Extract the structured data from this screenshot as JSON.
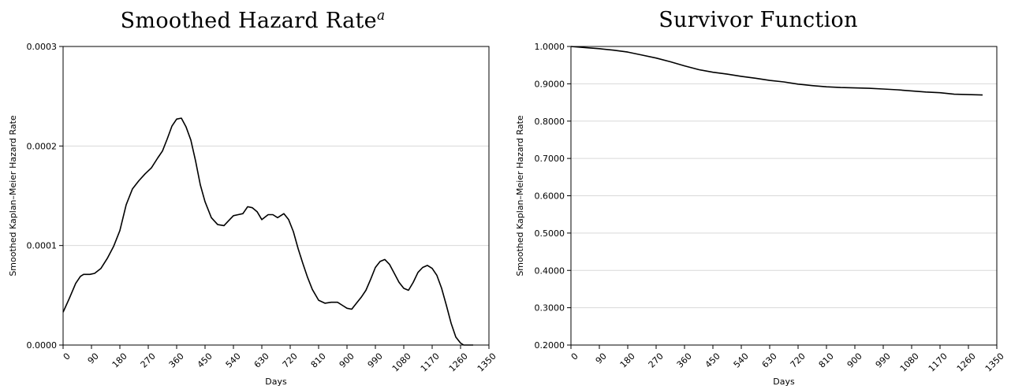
{
  "chart_data": [
    {
      "type": "line",
      "title": "Smoothed Hazard Rate",
      "title_superscript": "a",
      "xlabel": "Days",
      "ylabel": "Smoothed Kaplan–Meier Hazard Rate",
      "xlim": [
        0,
        1350
      ],
      "ylim": [
        0,
        0.0003
      ],
      "xticks": [
        0,
        90,
        180,
        270,
        360,
        450,
        540,
        630,
        720,
        810,
        900,
        990,
        1080,
        1170,
        1260,
        1350
      ],
      "yticks": [
        0,
        0.0001,
        0.0002,
        0.0003
      ],
      "ytick_labels": [
        "0.0000",
        "0.0001",
        "0.0002",
        "0.0003"
      ],
      "grid": "horizontal",
      "series": [
        {
          "x": [
            0,
            20,
            40,
            55,
            65,
            75,
            85,
            100,
            120,
            140,
            160,
            180,
            200,
            220,
            240,
            260,
            280,
            300,
            315,
            330,
            345,
            360,
            375,
            390,
            405,
            420,
            435,
            450,
            470,
            490,
            510,
            525,
            540,
            555,
            570,
            585,
            600,
            615,
            630,
            650,
            665,
            680,
            700,
            715,
            730,
            745,
            760,
            775,
            790,
            810,
            830,
            850,
            870,
            885,
            900,
            915,
            930,
            945,
            960,
            975,
            990,
            1005,
            1020,
            1035,
            1050,
            1065,
            1080,
            1095,
            1110,
            1125,
            1140,
            1155,
            1170,
            1185,
            1200,
            1215,
            1230,
            1245,
            1260,
            1270,
            1280,
            1290,
            1300
          ],
          "y": [
            3.3e-05,
            4.7e-05,
            6.2e-05,
            6.9e-05,
            7.1e-05,
            7.1e-05,
            7.1e-05,
            7.2e-05,
            7.7e-05,
            8.7e-05,
            9.9e-05,
            0.000115,
            0.000141,
            0.000157,
            0.000165,
            0.000172,
            0.000178,
            0.000188,
            0.000195,
            0.000207,
            0.00022,
            0.000227,
            0.000228,
            0.000219,
            0.000206,
            0.000185,
            0.000161,
            0.000144,
            0.000128,
            0.000121,
            0.00012,
            0.000125,
            0.00013,
            0.000131,
            0.000132,
            0.000139,
            0.000138,
            0.000134,
            0.000126,
            0.000131,
            0.000131,
            0.000128,
            0.000132,
            0.000126,
            0.000114,
            9.7e-05,
            8.2e-05,
            6.8e-05,
            5.6e-05,
            4.5e-05,
            4.2e-05,
            4.3e-05,
            4.3e-05,
            4e-05,
            3.7e-05,
            3.6e-05,
            4.2e-05,
            4.8e-05,
            5.5e-05,
            6.6e-05,
            7.8e-05,
            8.4e-05,
            8.6e-05,
            8.1e-05,
            7.2e-05,
            6.3e-05,
            5.7e-05,
            5.5e-05,
            6.3e-05,
            7.3e-05,
            7.8e-05,
            8e-05,
            7.7e-05,
            7e-05,
            5.7e-05,
            4e-05,
            2.2e-05,
            8e-06,
            2e-06,
            0.0,
            0.0,
            0.0,
            0.0
          ]
        }
      ]
    },
    {
      "type": "line",
      "title": "Survivor Function",
      "xlabel": "Days",
      "ylabel": "Smoothed Kaplan–Meier Hazard Rate",
      "xlim": [
        0,
        1350
      ],
      "ylim": [
        0.2,
        1.0
      ],
      "xticks": [
        0,
        90,
        180,
        270,
        360,
        450,
        540,
        630,
        720,
        810,
        900,
        990,
        1080,
        1170,
        1260,
        1350
      ],
      "yticks": [
        0.2,
        0.3,
        0.4,
        0.5,
        0.6,
        0.7,
        0.8,
        0.9,
        1.0
      ],
      "ytick_labels": [
        "0.2000",
        "0.3000",
        "0.4000",
        "0.5000",
        "0.6000",
        "0.7000",
        "0.8000",
        "0.9000",
        "1.0000"
      ],
      "grid": "horizontal",
      "series": [
        {
          "x": [
            0,
            45,
            90,
            135,
            180,
            225,
            270,
            315,
            360,
            405,
            450,
            495,
            540,
            585,
            630,
            675,
            720,
            765,
            810,
            855,
            900,
            945,
            990,
            1035,
            1080,
            1125,
            1170,
            1215,
            1260,
            1305
          ],
          "y": [
            1.0,
            0.997,
            0.994,
            0.99,
            0.985,
            0.977,
            0.969,
            0.959,
            0.948,
            0.938,
            0.931,
            0.926,
            0.92,
            0.915,
            0.909,
            0.905,
            0.899,
            0.895,
            0.892,
            0.89,
            0.889,
            0.888,
            0.886,
            0.884,
            0.881,
            0.878,
            0.876,
            0.872,
            0.871,
            0.87
          ]
        }
      ]
    }
  ]
}
